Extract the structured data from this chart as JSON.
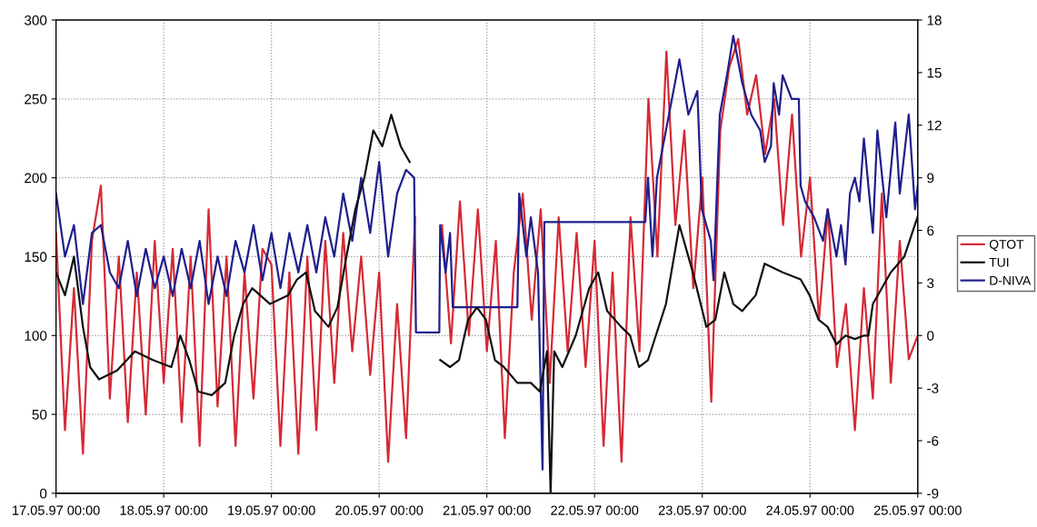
{
  "chart_data": {
    "type": "line",
    "x": [
      "1997-05-17T00:00",
      "1997-05-17T02:00",
      "1997-05-17T04:00",
      "1997-05-17T06:00",
      "1997-05-17T08:00",
      "1997-05-17T10:00",
      "1997-05-17T12:00",
      "1997-05-17T14:00",
      "1997-05-17T16:00",
      "1997-05-17T18:00",
      "1997-05-17T20:00",
      "1997-05-17T22:00",
      "1997-05-18T00:00",
      "1997-05-18T02:00",
      "1997-05-18T04:00",
      "1997-05-18T06:00",
      "1997-05-18T08:00",
      "1997-05-18T10:00",
      "1997-05-18T12:00",
      "1997-05-18T14:00",
      "1997-05-18T16:00",
      "1997-05-18T18:00",
      "1997-05-18T20:00",
      "1997-05-18T22:00",
      "1997-05-19T00:00",
      "1997-05-19T02:00",
      "1997-05-19T04:00",
      "1997-05-19T06:00",
      "1997-05-19T08:00",
      "1997-05-19T10:00",
      "1997-05-19T12:00",
      "1997-05-19T14:00",
      "1997-05-19T16:00",
      "1997-05-19T18:00",
      "1997-05-19T20:00",
      "1997-05-19T22:00",
      "1997-05-20T00:00",
      "1997-05-20T02:00",
      "1997-05-20T04:00",
      "1997-05-20T06:00",
      "1997-05-20T08:00",
      "1997-05-20T10:00",
      "1997-05-20T12:00",
      "1997-05-20T14:00",
      "1997-05-20T16:00",
      "1997-05-20T18:00",
      "1997-05-20T20:00",
      "1997-05-20T22:00",
      "1997-05-21T00:00",
      "1997-05-21T02:00",
      "1997-05-21T04:00",
      "1997-05-21T06:00",
      "1997-05-21T08:00",
      "1997-05-21T10:00",
      "1997-05-21T12:00",
      "1997-05-21T14:00",
      "1997-05-21T16:00",
      "1997-05-21T18:00",
      "1997-05-21T20:00",
      "1997-05-21T22:00",
      "1997-05-22T00:00",
      "1997-05-22T02:00",
      "1997-05-22T04:00",
      "1997-05-22T06:00",
      "1997-05-22T08:00",
      "1997-05-22T10:00",
      "1997-05-22T12:00",
      "1997-05-22T14:00",
      "1997-05-22T16:00",
      "1997-05-22T18:00",
      "1997-05-22T20:00",
      "1997-05-22T22:00",
      "1997-05-23T00:00",
      "1997-05-23T02:00",
      "1997-05-23T04:00",
      "1997-05-23T06:00",
      "1997-05-23T08:00",
      "1997-05-23T10:00",
      "1997-05-23T12:00",
      "1997-05-23T14:00",
      "1997-05-23T16:00",
      "1997-05-23T18:00",
      "1997-05-23T20:00",
      "1997-05-23T22:00",
      "1997-05-24T00:00",
      "1997-05-24T02:00",
      "1997-05-24T04:00",
      "1997-05-24T06:00",
      "1997-05-24T08:00",
      "1997-05-24T10:00",
      "1997-05-24T12:00",
      "1997-05-24T14:00",
      "1997-05-24T16:00",
      "1997-05-24T18:00",
      "1997-05-24T20:00",
      "1997-05-24T22:00",
      "1997-05-25T00:00"
    ],
    "series": [
      {
        "name": "QTOT",
        "color": "#d42a35",
        "values": [
          165,
          40,
          130,
          25,
          160,
          195,
          60,
          150,
          45,
          140,
          50,
          160,
          70,
          155,
          45,
          150,
          30,
          180,
          55,
          150,
          30,
          140,
          60,
          155,
          145,
          30,
          140,
          25,
          150,
          40,
          160,
          70,
          165,
          90,
          150,
          75,
          140,
          20,
          120,
          35,
          175,
          null,
          null,
          170,
          95,
          185,
          100,
          180,
          90,
          160,
          35,
          140,
          190,
          110,
          180,
          70,
          175,
          90,
          165,
          80,
          160,
          30,
          140,
          20,
          175,
          90,
          250,
          150,
          280,
          170,
          230,
          130,
          200,
          58,
          230,
          270,
          288,
          240,
          265,
          215,
          250,
          170,
          240,
          150,
          200,
          110,
          180,
          80,
          120,
          40,
          130,
          60,
          190,
          70,
          160,
          85,
          100
        ]
      },
      {
        "name": "TUI",
        "color": "#111111",
        "axis": "y2",
        "x": [
          "1997-05-17T00:00",
          "1997-05-17T02:00",
          "1997-05-17T04:00",
          "1997-05-17T06:00",
          "1997-05-17T07:36",
          "1997-05-17T09:36",
          "1997-05-17T13:36",
          "1997-05-17T17:36",
          "1997-05-17T21:36",
          "1997-05-18T01:42",
          "1997-05-18T03:42",
          "1997-05-18T05:42",
          "1997-05-18T07:42",
          "1997-05-18T10:42",
          "1997-05-18T13:42",
          "1997-05-18T15:42",
          "1997-05-18T17:42",
          "1997-05-18T19:42",
          "1997-05-18T23:42",
          "1997-05-19T03:42",
          "1997-05-19T05:42",
          "1997-05-19T07:42",
          "1997-05-19T09:42",
          "1997-05-19T12:42",
          "1997-05-19T14:42",
          "1997-05-19T16:42",
          "1997-05-19T18:42",
          "1997-05-19T20:42",
          "1997-05-19T22:42",
          "1997-05-20T00:42",
          "1997-05-20T02:42",
          "1997-05-20T04:48",
          "1997-05-20T06:48",
          "1997-05-20T10:00",
          "1997-05-20T13:36",
          "1997-05-20T15:48",
          "1997-05-20T17:48",
          "1997-05-20T19:48",
          "1997-05-20T21:48",
          "1997-05-20T23:48",
          "1997-05-21T01:48",
          "1997-05-21T03:48",
          "1997-05-21T06:48",
          "1997-05-21T09:48",
          "1997-05-21T11:48",
          "1997-05-21T13:24",
          "1997-05-21T14:12",
          "1997-05-21T15:00",
          "1997-05-21T16:48",
          "1997-05-21T19:48",
          "1997-05-21T22:48",
          "1997-05-22T00:48",
          "1997-05-22T02:48",
          "1997-05-22T05:54",
          "1997-05-22T07:54",
          "1997-05-22T09:54",
          "1997-05-22T11:54",
          "1997-05-22T15:54",
          "1997-05-22T18:54",
          "1997-05-22T21:54",
          "1997-05-23T00:54",
          "1997-05-23T02:54",
          "1997-05-23T04:54",
          "1997-05-23T06:54",
          "1997-05-23T08:54",
          "1997-05-23T11:54",
          "1997-05-23T13:54",
          "1997-05-23T17:54",
          "1997-05-23T21:54",
          "1997-05-23T23:54",
          "1997-05-24T01:54",
          "1997-05-24T03:54",
          "1997-05-24T05:54",
          "1997-05-24T07:54",
          "1997-05-24T10:00",
          "1997-05-24T12:00",
          "1997-05-24T13:00",
          "1997-05-24T14:00",
          "1997-05-24T18:00",
          "1997-05-24T21:00",
          "1997-05-25T00:00"
        ],
        "values": [
          3.6,
          2.3,
          4.5,
          0.5,
          -1.8,
          -2.5,
          -2,
          -0.9,
          -1.4,
          -1.8,
          0,
          -1.4,
          -3.2,
          -3.4,
          -2.7,
          0,
          1.8,
          2.7,
          1.8,
          2.3,
          3.2,
          3.6,
          1.4,
          0.5,
          1.6,
          4.5,
          7.2,
          9,
          11.7,
          10.8,
          12.6,
          10.8,
          9.9,
          null,
          -1.4,
          -1.8,
          -1.4,
          0.9,
          1.6,
          0.9,
          -1.4,
          -1.8,
          -2.7,
          -2.7,
          -3.2,
          -0.9,
          -9,
          -0.9,
          -1.8,
          0,
          2.7,
          3.6,
          1.4,
          0.5,
          0,
          -1.8,
          -1.4,
          1.8,
          6.3,
          3.6,
          0.5,
          0.9,
          3.6,
          1.8,
          1.4,
          2.3,
          4.1,
          3.6,
          3.2,
          2.3,
          0.9,
          0.5,
          -0.5,
          0,
          -0.2,
          0,
          0,
          1.8,
          3.6,
          4.5,
          6.8
        ]
      },
      {
        "name": "D-NIVA",
        "color": "#1f1f8c",
        "x": [
          "1997-05-17T00:00",
          "1997-05-17T02:00",
          "1997-05-17T04:00",
          "1997-05-17T06:00",
          "1997-05-17T08:00",
          "1997-05-17T10:00",
          "1997-05-17T12:00",
          "1997-05-17T14:00",
          "1997-05-17T16:00",
          "1997-05-17T18:00",
          "1997-05-17T20:00",
          "1997-05-17T22:00",
          "1997-05-18T00:00",
          "1997-05-18T02:00",
          "1997-05-18T04:00",
          "1997-05-18T06:00",
          "1997-05-18T08:00",
          "1997-05-18T10:00",
          "1997-05-18T12:00",
          "1997-05-18T14:00",
          "1997-05-18T16:00",
          "1997-05-18T18:00",
          "1997-05-18T20:00",
          "1997-05-18T22:00",
          "1997-05-19T00:00",
          "1997-05-19T02:00",
          "1997-05-19T04:00",
          "1997-05-19T06:00",
          "1997-05-19T08:00",
          "1997-05-19T10:00",
          "1997-05-19T12:00",
          "1997-05-19T14:00",
          "1997-05-19T16:00",
          "1997-05-19T18:00",
          "1997-05-19T20:00",
          "1997-05-19T22:00",
          "1997-05-20T00:00",
          "1997-05-20T02:00",
          "1997-05-20T04:00",
          "1997-05-20T06:00",
          "1997-05-20T07:48",
          "1997-05-20T08:12",
          "1997-05-20T13:24",
          "1997-05-20T13:36",
          "1997-05-20T14:48",
          "1997-05-20T15:48",
          "1997-05-20T16:24",
          "1997-05-21T06:48",
          "1997-05-21T07:12",
          "1997-05-21T08:48",
          "1997-05-21T09:48",
          "1997-05-21T11:24",
          "1997-05-21T12:24",
          "1997-05-21T12:48",
          "1997-05-22T11:18",
          "1997-05-22T11:54",
          "1997-05-22T12:54",
          "1997-05-22T13:54",
          "1997-05-22T18:54",
          "1997-05-22T20:54",
          "1997-05-22T22:54",
          "1997-05-22T23:54",
          "1997-05-23T01:54",
          "1997-05-23T02:30",
          "1997-05-23T03:54",
          "1997-05-23T05:30",
          "1997-05-23T06:54",
          "1997-05-23T08:54",
          "1997-05-23T10:54",
          "1997-05-23T12:54",
          "1997-05-23T13:54",
          "1997-05-23T15:18",
          "1997-05-23T15:54",
          "1997-05-23T17:06",
          "1997-05-23T17:54",
          "1997-05-23T19:54",
          "1997-05-23T21:30",
          "1997-05-23T21:54",
          "1997-05-23T22:54",
          "1997-05-24T00:54",
          "1997-05-24T02:54",
          "1997-05-24T03:54",
          "1997-05-24T05:54",
          "1997-05-24T06:54",
          "1997-05-24T07:54",
          "1997-05-24T08:54",
          "1997-05-24T10:00",
          "1997-05-24T11:00",
          "1997-05-24T12:00",
          "1997-05-24T14:00",
          "1997-05-24T15:00",
          "1997-05-24T17:00",
          "1997-05-24T19:00",
          "1997-05-24T20:00",
          "1997-05-24T22:00",
          "1997-05-24T23:24",
          "1997-05-25T00:00"
        ],
        "values": [
          190,
          150,
          170,
          120,
          165,
          170,
          140,
          130,
          160,
          125,
          155,
          130,
          150,
          125,
          155,
          130,
          160,
          120,
          150,
          125,
          160,
          140,
          170,
          135,
          165,
          130,
          165,
          140,
          170,
          140,
          175,
          150,
          190,
          160,
          200,
          165,
          210,
          150,
          190,
          205,
          200,
          102,
          102,
          170,
          140,
          165,
          118,
          118,
          190,
          150,
          175,
          140,
          15,
          172,
          172,
          200,
          150,
          200,
          275,
          240,
          255,
          180,
          160,
          135,
          240,
          265,
          290,
          260,
          240,
          230,
          210,
          220,
          260,
          240,
          265,
          250,
          250,
          195,
          185,
          175,
          160,
          180,
          150,
          170,
          145,
          190,
          200,
          185,
          225,
          165,
          230,
          175,
          235,
          190,
          240,
          180,
          195
        ]
      }
    ],
    "xlim": [
      "1997-05-17T00:00",
      "1997-05-25T00:00"
    ],
    "xticks": [
      {
        "value": "1997-05-17T00:00",
        "label": "17.05.97 00:00"
      },
      {
        "value": "1997-05-18T00:00",
        "label": "18.05.97 00:00"
      },
      {
        "value": "1997-05-19T00:00",
        "label": "19.05.97 00:00"
      },
      {
        "value": "1997-05-20T00:00",
        "label": "20.05.97 00:00"
      },
      {
        "value": "1997-05-21T00:00",
        "label": "21.05.97 00:00"
      },
      {
        "value": "1997-05-22T00:00",
        "label": "22.05.97 00:00"
      },
      {
        "value": "1997-05-23T00:00",
        "label": "23.05.97 00:00"
      },
      {
        "value": "1997-05-24T00:00",
        "label": "24.05.97 00:00"
      },
      {
        "value": "1997-05-25T00:00",
        "label": "25.05.97 00:00"
      }
    ],
    "ylim": [
      0,
      300
    ],
    "yticks": [
      0,
      50,
      100,
      150,
      200,
      250,
      300
    ],
    "y2lim": [
      -9,
      18
    ],
    "y2ticks": [
      -9,
      -6,
      -3,
      0,
      3,
      6,
      9,
      12,
      15,
      18
    ],
    "grid": true,
    "legend": "right",
    "marker": "none",
    "line_style": "solid"
  }
}
